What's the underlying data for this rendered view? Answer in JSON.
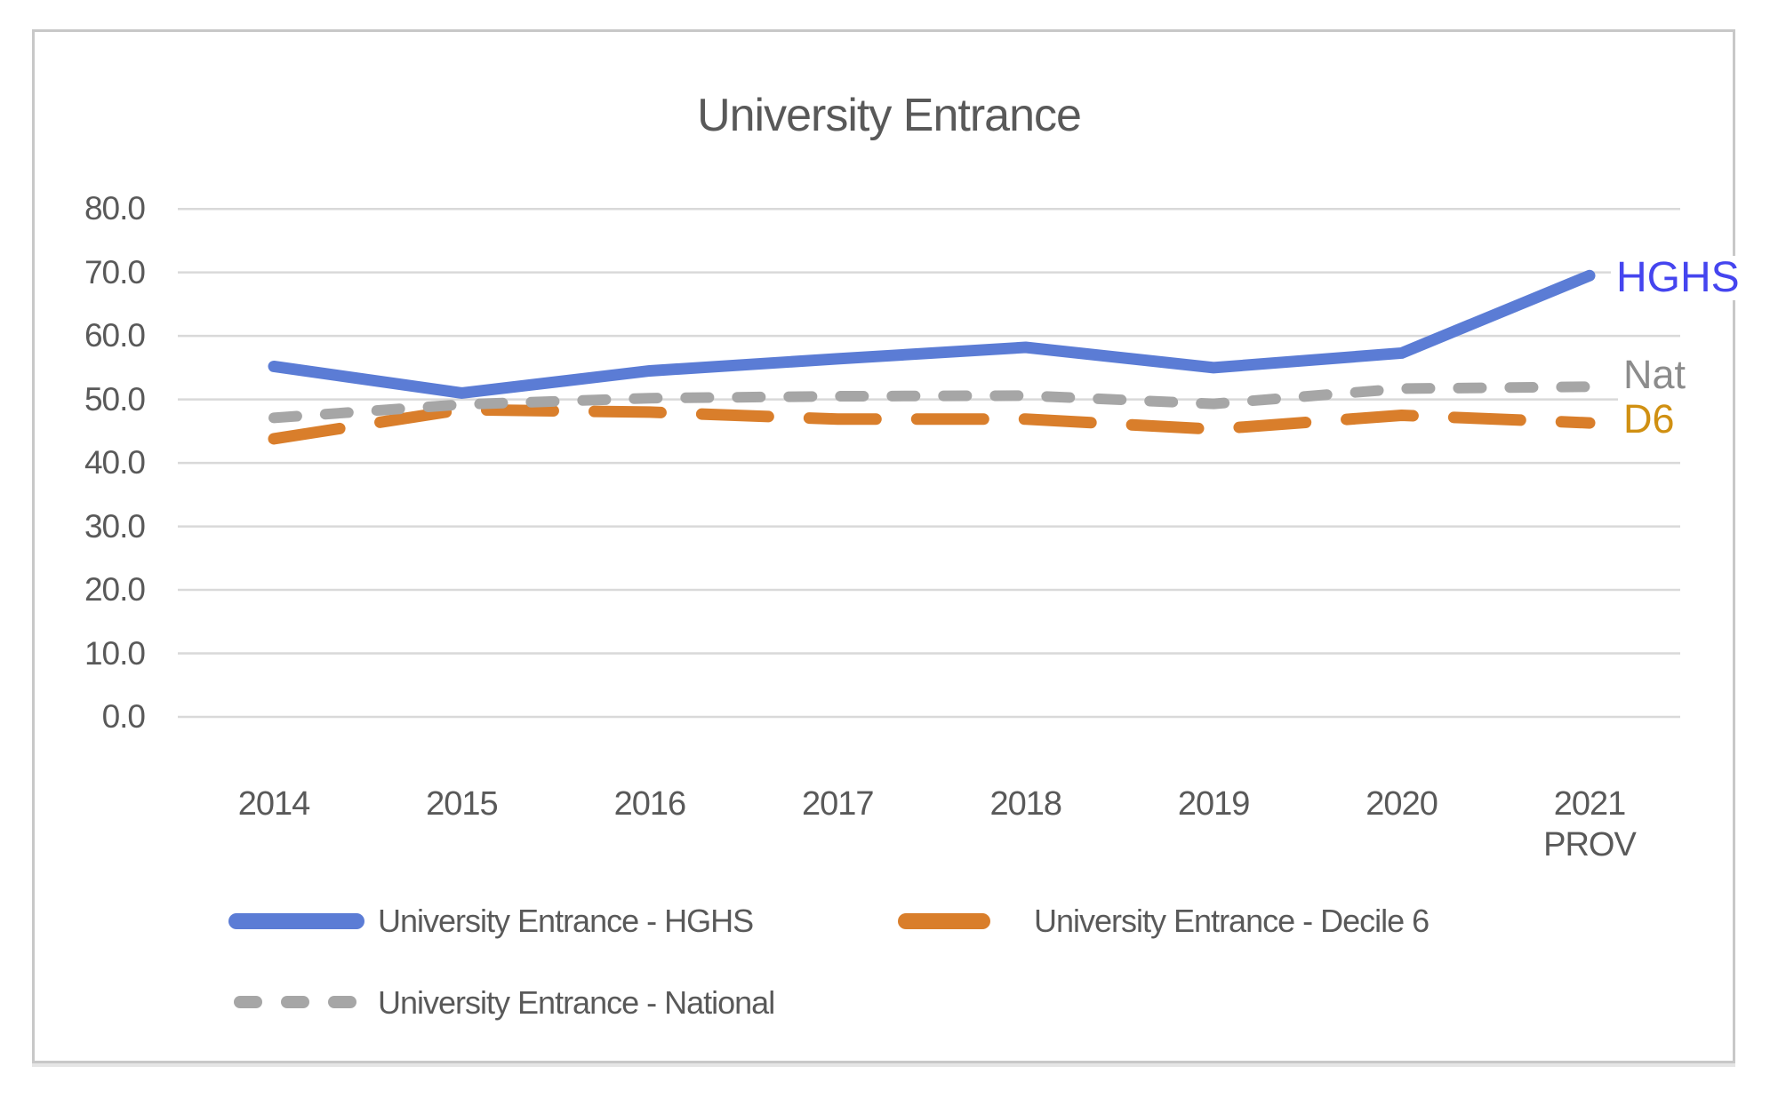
{
  "chart_data": {
    "type": "line",
    "title": "University Entrance",
    "categories": [
      "2014",
      "2015",
      "2016",
      "2017",
      "2018",
      "2019",
      "2020",
      "2021"
    ],
    "last_category_note": "PROV",
    "series": [
      {
        "name": "University Entrance - HGHS",
        "color": "#5b7cd5",
        "style": "solid",
        "values": [
          55.2,
          51.0,
          54.5,
          56.4,
          58.2,
          55.0,
          57.3,
          69.5
        ]
      },
      {
        "name": "University Entrance - Decile 6",
        "color": "#d97e2b",
        "style": "long-dash",
        "values": [
          43.8,
          48.4,
          48.0,
          46.9,
          46.9,
          45.3,
          47.5,
          46.3
        ]
      },
      {
        "name": "University Entrance - National",
        "color": "#a6a6a6",
        "style": "dash",
        "values": [
          47.1,
          49.2,
          50.2,
          50.5,
          50.6,
          49.3,
          51.7,
          52.0
        ]
      }
    ],
    "ylim": [
      0,
      80
    ],
    "ytick_step": 10,
    "ytick_labels": [
      "0.0",
      "10.0",
      "20.0",
      "30.0",
      "40.0",
      "50.0",
      "60.0",
      "70.0",
      "80.0"
    ],
    "grid": true,
    "legend_position": "bottom",
    "gridline_color": "#d9d9d9",
    "axis_text_color": "#595959"
  },
  "annotations": [
    {
      "text": "HGHS",
      "color": "#4545ef"
    },
    {
      "text": "Nat",
      "color": "#8c8c8c"
    },
    {
      "text": "D6",
      "color": "#d09012"
    }
  ]
}
